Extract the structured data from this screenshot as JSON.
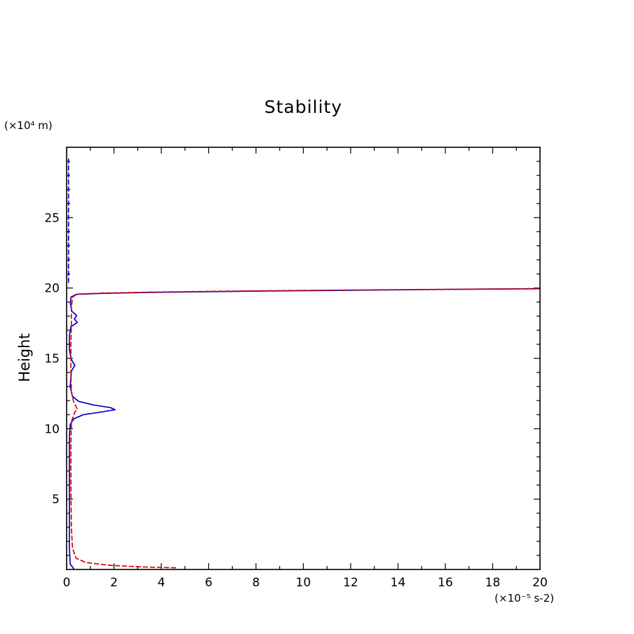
{
  "title": "Stability",
  "axes": {
    "y_unit_label": "(×10⁴ m)",
    "x_unit_label": "(×10⁻⁵ s-2)",
    "y_axis_label": "Height"
  },
  "chart_data": {
    "type": "line",
    "title": "Stability",
    "xlabel": "(×10⁻⁵ s-2)",
    "ylabel": "Height (×10⁴ m)",
    "xlim": [
      0,
      20
    ],
    "ylim": [
      0,
      30
    ],
    "x_major_ticks": [
      0,
      2,
      4,
      6,
      8,
      10,
      12,
      14,
      16,
      18,
      20
    ],
    "y_major_ticks": [
      5,
      10,
      15,
      20,
      25
    ],
    "x_minor_step": 1,
    "y_minor_step": 1,
    "grid": false,
    "legend": "none",
    "colors": {
      "solid_profile": "#0000cc",
      "dashed_profile": "#dd0000",
      "frame": "#000000"
    },
    "series": [
      {
        "name": "stability-profile-solid",
        "color": "#0000cc",
        "dash": "solid",
        "points": [
          [
            0.3,
            0.05
          ],
          [
            0.15,
            0.4
          ],
          [
            0.12,
            1.5
          ],
          [
            0.12,
            4
          ],
          [
            0.12,
            7
          ],
          [
            0.12,
            9.5
          ],
          [
            0.15,
            10.3
          ],
          [
            0.3,
            10.7
          ],
          [
            0.7,
            11.0
          ],
          [
            1.5,
            11.2
          ],
          [
            2.05,
            11.35
          ],
          [
            1.85,
            11.5
          ],
          [
            1.1,
            11.7
          ],
          [
            0.5,
            11.95
          ],
          [
            0.25,
            12.3
          ],
          [
            0.15,
            13
          ],
          [
            0.2,
            14.1
          ],
          [
            0.35,
            14.5
          ],
          [
            0.2,
            14.9
          ],
          [
            0.12,
            15.6
          ],
          [
            0.12,
            16.6
          ],
          [
            0.18,
            17.25
          ],
          [
            0.45,
            17.55
          ],
          [
            0.33,
            17.8
          ],
          [
            0.42,
            18.05
          ],
          [
            0.22,
            18.35
          ],
          [
            0.16,
            18.9
          ],
          [
            0.18,
            19.35
          ],
          [
            0.4,
            19.55
          ],
          [
            1.5,
            19.62
          ],
          [
            4,
            19.7
          ],
          [
            8,
            19.78
          ],
          [
            12,
            19.84
          ],
          [
            16,
            19.9
          ],
          [
            20,
            19.95
          ]
        ]
      },
      {
        "name": "stability-profile-dashed",
        "color": "#dd0000",
        "dash": "dashed",
        "points": [
          [
            4.6,
            0.12
          ],
          [
            3.2,
            0.18
          ],
          [
            1.8,
            0.3
          ],
          [
            0.8,
            0.5
          ],
          [
            0.4,
            0.8
          ],
          [
            0.25,
            1.5
          ],
          [
            0.2,
            3
          ],
          [
            0.18,
            6
          ],
          [
            0.18,
            9
          ],
          [
            0.2,
            10.5
          ],
          [
            0.35,
            11.2
          ],
          [
            0.45,
            11.4
          ],
          [
            0.3,
            11.9
          ],
          [
            0.2,
            12.6
          ],
          [
            0.18,
            14
          ],
          [
            0.18,
            16
          ],
          [
            0.2,
            17.5
          ],
          [
            0.2,
            18.6
          ],
          [
            0.25,
            19.35
          ],
          [
            0.45,
            19.57
          ],
          [
            1.5,
            19.64
          ],
          [
            4,
            19.72
          ],
          [
            8,
            19.8
          ],
          [
            12,
            19.86
          ],
          [
            16,
            19.91
          ],
          [
            20,
            19.96
          ]
        ]
      },
      {
        "name": "upper-reference-dashed",
        "color": "#0000cc",
        "dash": "dashed",
        "points": [
          [
            0.08,
            20.4
          ],
          [
            0.08,
            29.3
          ]
        ]
      }
    ]
  }
}
